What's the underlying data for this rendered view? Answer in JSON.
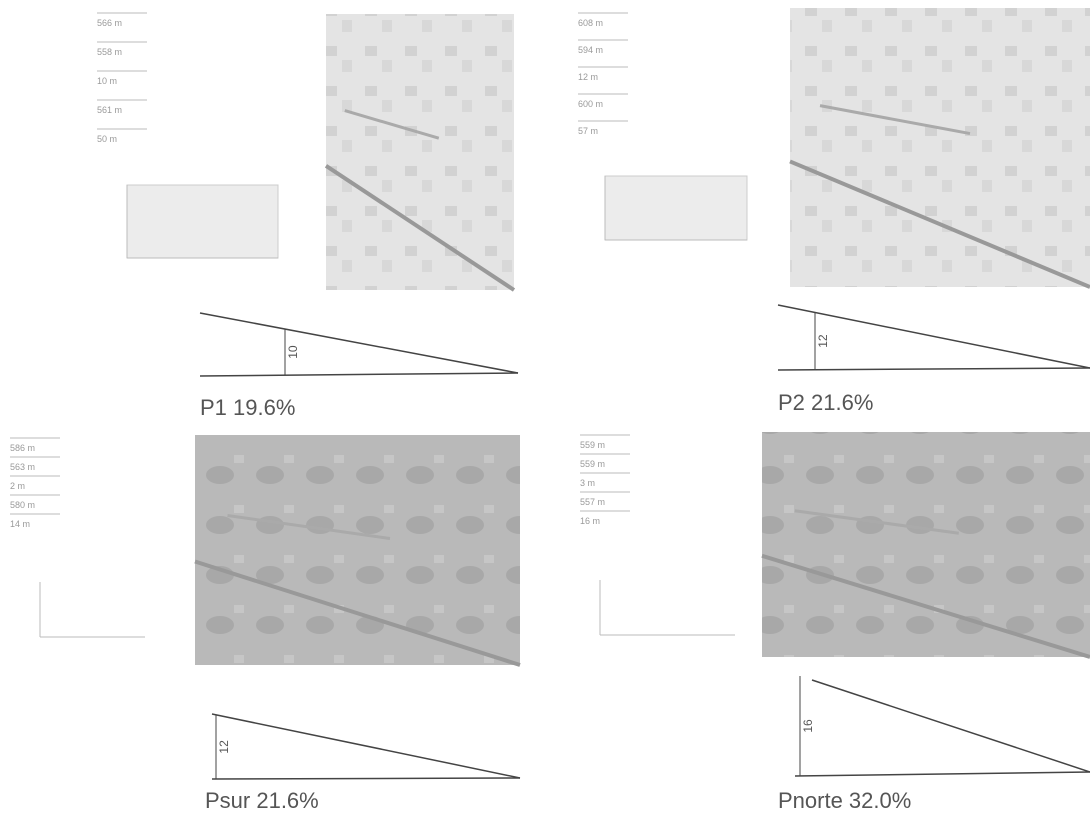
{
  "panels": [
    {
      "stats": [
        "566 m",
        "558 m",
        "10 m",
        "561 m",
        "50 m"
      ],
      "height_label": "10",
      "title": "P1 19.6%"
    },
    {
      "stats": [
        "608 m",
        "594 m",
        "12 m",
        "600 m",
        "57 m"
      ],
      "height_label": "12",
      "title": "P2  21.6%"
    },
    {
      "stats": [
        "586 m",
        "563 m",
        "2 m",
        "580 m",
        "14 m"
      ],
      "height_label": "12",
      "title": "Psur 21.6%"
    },
    {
      "stats": [
        "559 m",
        "559 m",
        "3 m",
        "557 m",
        "16 m"
      ],
      "height_label": "16",
      "title": "Pnorte 32.0%"
    }
  ]
}
